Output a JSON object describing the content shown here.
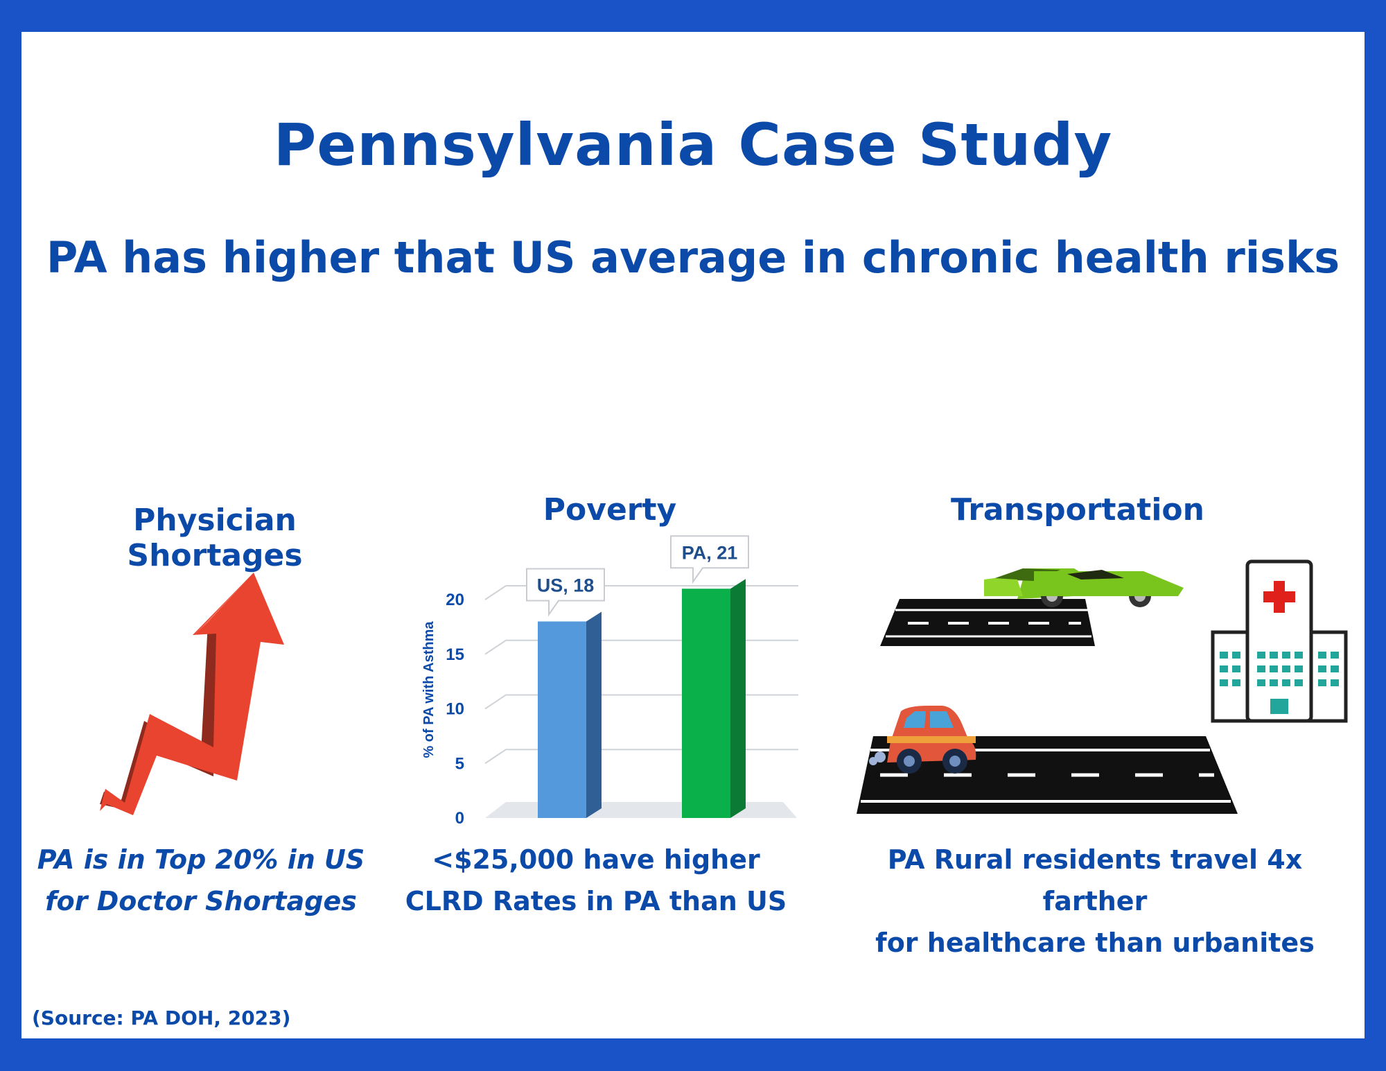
{
  "title": "Pennsylvania Case Study",
  "subtitle": "PA has higher that US average in chronic health risks",
  "physician": {
    "heading": "Physician Shortages",
    "caption_line1": "PA is in Top 20% in US",
    "caption_line2": "for Doctor Shortages",
    "arrow_icon": "rising-arrow-icon",
    "arrow_color": "#e8442f"
  },
  "poverty": {
    "heading": "Poverty",
    "caption_line1": "<$25,000 have higher",
    "caption_line2": "CLRD Rates in PA than US"
  },
  "transportation": {
    "heading": "Transportation",
    "caption_line1": "PA Rural residents travel 4x farther",
    "caption_line2": "for healthcare than urbanites",
    "icons": [
      "sports-car-icon",
      "road-icon",
      "hospital-icon",
      "compact-car-icon"
    ]
  },
  "source": "(Source: PA DOH, 2023)",
  "chart_data": {
    "type": "bar",
    "categories": [
      "US",
      "PA"
    ],
    "values": [
      18,
      21
    ],
    "data_labels": [
      "US, 18",
      "PA, 21"
    ],
    "ylabel": "% of PA with Asthma",
    "yticks": [
      "0",
      "5",
      "10",
      "15",
      "20"
    ],
    "ylim": [
      0,
      21
    ],
    "grid": true,
    "colors": [
      "#5599dd",
      "#0ab04a"
    ],
    "side_colors": [
      "#2f5f94",
      "#0a7a35"
    ]
  }
}
